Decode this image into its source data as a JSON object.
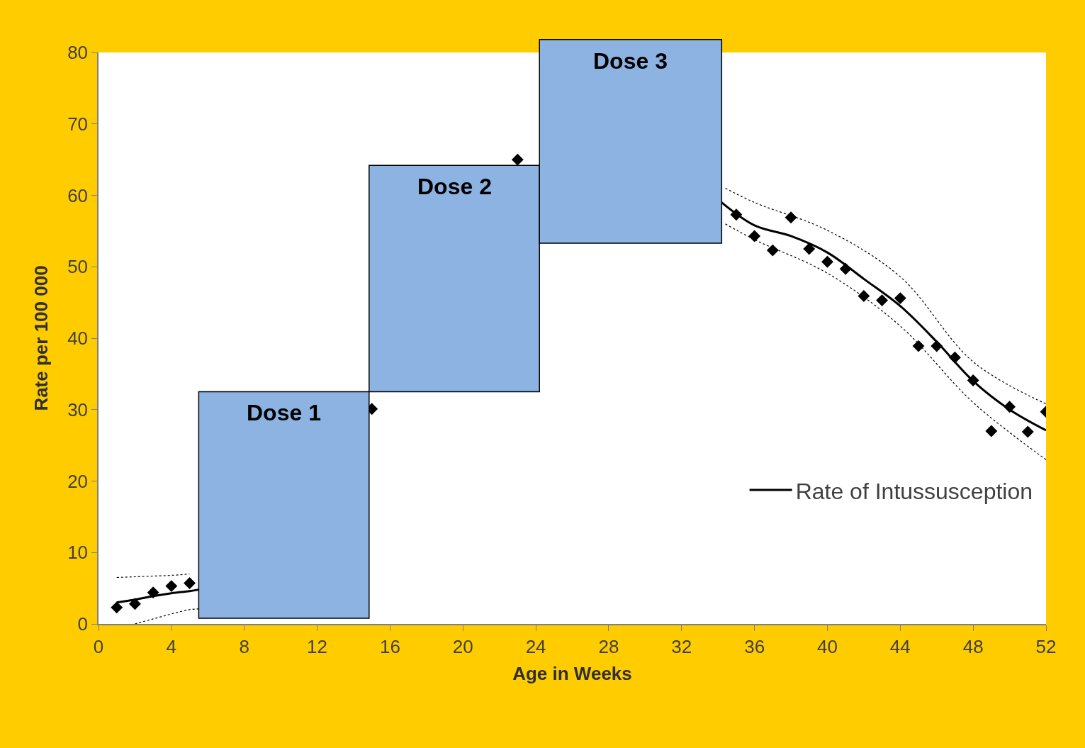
{
  "chart_data": {
    "type": "scatter",
    "xlabel": "Age in Weeks",
    "ylabel": "Rate per 100 000",
    "annotations": [
      "Dose 1",
      "Dose 2",
      "Dose 3"
    ],
    "xlim": [
      0,
      52
    ],
    "xticks": [
      0,
      4,
      8,
      12,
      16,
      20,
      24,
      28,
      32,
      36,
      40,
      44,
      48,
      52
    ],
    "ylim": [
      0,
      80
    ],
    "yticks": [
      0,
      10,
      20,
      30,
      40,
      50,
      60,
      70,
      80
    ],
    "legend": "bottom right",
    "series": [
      {
        "marker": "diamond",
        "color": "#000000",
        "x": [
          1,
          2,
          3,
          4,
          5,
          15,
          23,
          35,
          36,
          37,
          38,
          39,
          40,
          41,
          42,
          43,
          44,
          45,
          46,
          47,
          48,
          49,
          50,
          51,
          52
        ],
        "values": [
          2.3,
          2.8,
          4.4,
          5.3,
          5.7,
          30.1,
          65.0,
          57.3,
          54.3,
          52.3,
          56.9,
          52.5,
          50.7,
          49.7,
          45.9,
          45.3,
          45.6,
          38.9,
          38.9,
          37.3,
          34.1,
          27.0,
          30.4,
          26.9,
          29.7
        ]
      },
      {
        "type": "line",
        "name": "Rate of Intussusception",
        "color": "#000000",
        "line_style": "solid",
        "x": [
          1,
          2,
          3,
          4,
          5,
          5.5,
          20,
          34.2,
          36,
          38,
          40,
          42,
          44,
          46,
          48,
          50,
          52
        ],
        "values": [
          3.0,
          3.4,
          3.9,
          4.3,
          4.6,
          4.8,
          null,
          59.0,
          55.8,
          54.3,
          52.0,
          48.3,
          44.5,
          39.5,
          34.0,
          30.0,
          27.1
        ]
      },
      {
        "type": "line",
        "color": "#000000",
        "line_style": "dotted",
        "x": [
          1,
          2,
          3,
          4,
          5,
          20,
          34.4,
          36,
          40,
          44,
          48,
          52
        ],
        "values": [
          6.5,
          6.6,
          6.7,
          6.8,
          7.0,
          null,
          61.0,
          59.0,
          55.1,
          48.6,
          36.7,
          30.8
        ]
      },
      {
        "type": "line",
        "color": "#000000",
        "line_style": "dotted",
        "x": [
          2,
          3,
          4,
          5,
          5.5,
          20,
          34.4,
          36,
          40,
          44,
          48,
          52
        ],
        "values": [
          0,
          0.7,
          1.4,
          2.0,
          2.1,
          null,
          56.0,
          53.8,
          49.1,
          41.7,
          31.0,
          23.0
        ]
      }
    ]
  }
}
